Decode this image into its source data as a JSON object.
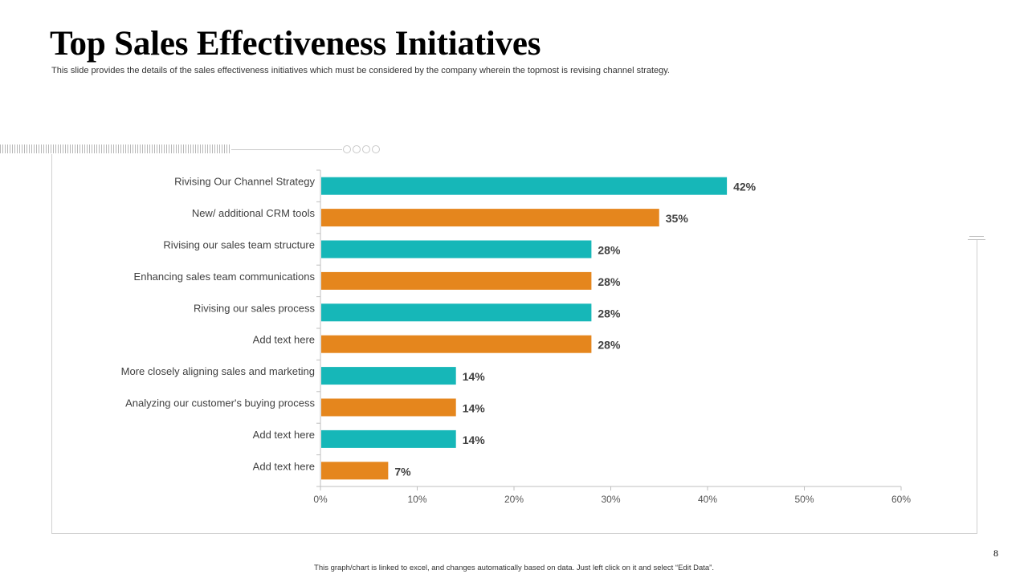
{
  "slide": {
    "title": "Top Sales Effectiveness Initiatives",
    "subtitle": "This slide provides the details of the sales effectiveness initiatives which must be considered by the company wherein the topmost is revising channel strategy.",
    "footer_note": "This graph/chart is linked to excel, and changes automatically based on data. Just left click on it and select “Edit Data”.",
    "page_number": "8"
  },
  "colors": {
    "teal": "#16b7b8",
    "orange": "#e5861d",
    "axis": "#bfbfbf"
  },
  "chart_data": {
    "type": "bar",
    "orientation": "horizontal",
    "title": "",
    "xlabel": "",
    "ylabel": "",
    "categories": [
      "Rivising Our Channel Strategy",
      "New/ additional CRM tools",
      "Rivising our sales team structure",
      "Enhancing sales team communications",
      "Rivising our sales process",
      "Add text here",
      "More closely aligning sales and marketing",
      "Analyzing our customer's buying process",
      "Add text here",
      "Add text here"
    ],
    "values": [
      42,
      35,
      28,
      28,
      28,
      28,
      14,
      14,
      14,
      7
    ],
    "value_labels": [
      "42%",
      "35%",
      "28%",
      "28%",
      "28%",
      "28%",
      "14%",
      "14%",
      "14%",
      "7%"
    ],
    "bar_colors": [
      "teal",
      "orange",
      "teal",
      "orange",
      "teal",
      "orange",
      "teal",
      "orange",
      "teal",
      "orange"
    ],
    "xlim": [
      0,
      60
    ],
    "x_ticks": [
      0,
      10,
      20,
      30,
      40,
      50,
      60
    ],
    "x_tick_labels": [
      "0%",
      "10%",
      "20%",
      "30%",
      "40%",
      "50%",
      "60%"
    ],
    "grid": false,
    "legend": "none"
  }
}
